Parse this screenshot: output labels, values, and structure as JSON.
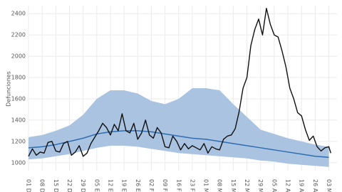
{
  "chart_data": {
    "type": "line",
    "y_label": "Defunciones",
    "xlim": [
      0,
      156
    ],
    "ylim": [
      925,
      2475
    ],
    "yticks": [
      1000,
      1200,
      1400,
      1600,
      1800,
      2000,
      2200,
      2400
    ],
    "xticks": [
      {
        "value": 0,
        "label": "01 D"
      },
      {
        "value": 7,
        "label": "08 D"
      },
      {
        "value": 14,
        "label": "15 D"
      },
      {
        "value": 21,
        "label": "22 D"
      },
      {
        "value": 28,
        "label": "29 D"
      },
      {
        "value": 35,
        "label": "05 E"
      },
      {
        "value": 42,
        "label": "12 E"
      },
      {
        "value": 49,
        "label": "19 E"
      },
      {
        "value": 56,
        "label": "26 E"
      },
      {
        "value": 63,
        "label": "02 F"
      },
      {
        "value": 70,
        "label": "09 F"
      },
      {
        "value": 77,
        "label": "16 F"
      },
      {
        "value": 84,
        "label": "23 F"
      },
      {
        "value": 91,
        "label": "01 M"
      },
      {
        "value": 98,
        "label": "08 M"
      },
      {
        "value": 105,
        "label": "15 M"
      },
      {
        "value": 112,
        "label": "22 M"
      },
      {
        "value": 119,
        "label": "29 M"
      },
      {
        "value": 126,
        "label": "05 A"
      },
      {
        "value": 133,
        "label": "12 A"
      },
      {
        "value": 140,
        "label": "19 A"
      },
      {
        "value": 147,
        "label": "26 A"
      },
      {
        "value": 154,
        "label": "03 M"
      }
    ],
    "grid": true,
    "expected": {
      "color": "#2f6db3",
      "band_color": "#a9c3e0",
      "x": [
        0,
        7,
        14,
        21,
        28,
        35,
        42,
        49,
        56,
        63,
        70,
        77,
        84,
        91,
        98,
        105,
        112,
        119,
        126,
        133,
        140,
        147,
        154
      ],
      "values": [
        1140,
        1150,
        1170,
        1200,
        1230,
        1270,
        1290,
        1300,
        1300,
        1290,
        1270,
        1250,
        1230,
        1220,
        1200,
        1180,
        1160,
        1140,
        1120,
        1100,
        1080,
        1060,
        1050
      ],
      "lower": [
        1030,
        1040,
        1060,
        1080,
        1110,
        1140,
        1160,
        1160,
        1150,
        1130,
        1110,
        1090,
        1080,
        1070,
        1060,
        1050,
        1040,
        1020,
        1010,
        990,
        980,
        970,
        960
      ],
      "upper": [
        1240,
        1260,
        1300,
        1350,
        1450,
        1600,
        1680,
        1680,
        1650,
        1580,
        1550,
        1600,
        1700,
        1700,
        1680,
        1550,
        1430,
        1310,
        1270,
        1230,
        1200,
        1170,
        1150
      ]
    },
    "observed": {
      "color": "#111111",
      "x": [
        0,
        2,
        4,
        6,
        8,
        10,
        12,
        14,
        16,
        18,
        20,
        22,
        24,
        26,
        28,
        30,
        32,
        34,
        36,
        38,
        40,
        42,
        44,
        46,
        48,
        50,
        52,
        54,
        56,
        58,
        60,
        62,
        64,
        66,
        68,
        70,
        72,
        74,
        76,
        78,
        80,
        82,
        84,
        86,
        88,
        90,
        92,
        94,
        96,
        98,
        100,
        102,
        104,
        106,
        108,
        110,
        112,
        114,
        116,
        118,
        120,
        122,
        124,
        126,
        128,
        130,
        132,
        134,
        136,
        138,
        140,
        142,
        144,
        146,
        148,
        150,
        152,
        154,
        155
      ],
      "values": [
        1060,
        1130,
        1070,
        1100,
        1090,
        1190,
        1200,
        1110,
        1100,
        1180,
        1200,
        1070,
        1100,
        1160,
        1060,
        1090,
        1180,
        1240,
        1300,
        1370,
        1330,
        1260,
        1360,
        1300,
        1460,
        1300,
        1280,
        1370,
        1220,
        1280,
        1400,
        1260,
        1230,
        1330,
        1280,
        1150,
        1140,
        1250,
        1200,
        1120,
        1180,
        1130,
        1160,
        1140,
        1120,
        1180,
        1090,
        1150,
        1130,
        1120,
        1220,
        1250,
        1260,
        1320,
        1480,
        1700,
        1800,
        2100,
        2250,
        2350,
        2200,
        2450,
        2300,
        2200,
        2180,
        2050,
        1900,
        1700,
        1600,
        1470,
        1440,
        1310,
        1210,
        1250,
        1150,
        1110,
        1140,
        1150,
        1090
      ]
    }
  }
}
